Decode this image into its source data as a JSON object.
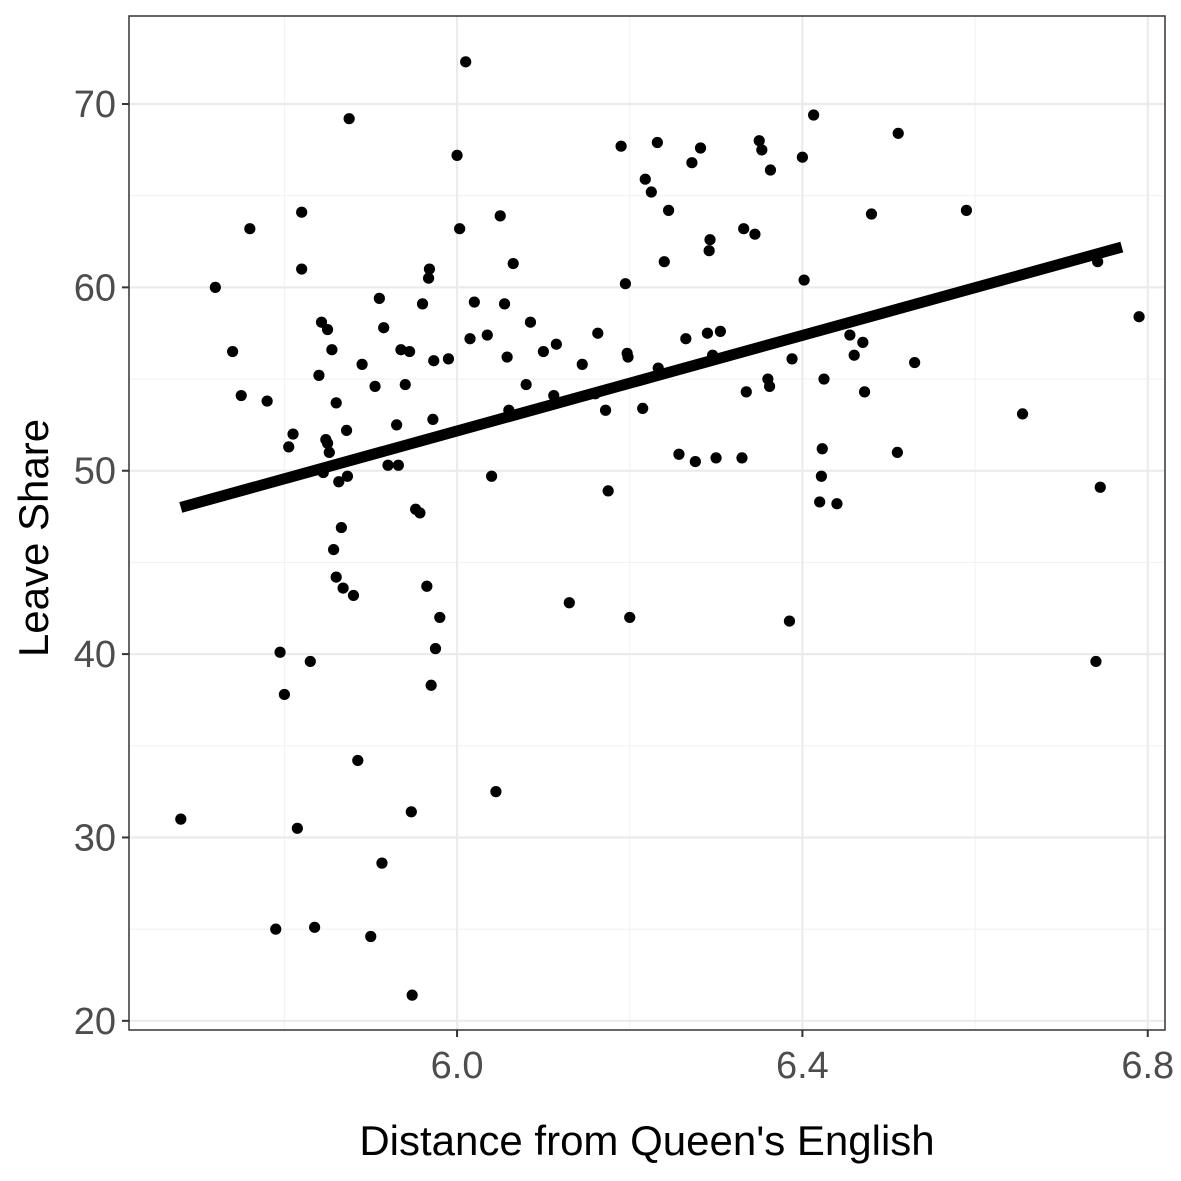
{
  "chart_data": {
    "type": "scatter",
    "title": "",
    "xlabel": "Distance from Queen's English",
    "ylabel": "Leave Share",
    "xlim": [
      5.62,
      6.82
    ],
    "ylim": [
      19.5,
      74.8
    ],
    "x_ticks": [
      6.0,
      6.4,
      6.8
    ],
    "x_tick_labels": [
      "6.0",
      "6.4",
      "6.8"
    ],
    "y_ticks": [
      20,
      30,
      40,
      50,
      60,
      70
    ],
    "y_tick_labels": [
      "20",
      "30",
      "40",
      "50",
      "60",
      "70"
    ],
    "grid": true,
    "legend": "none",
    "point_color": "#000000",
    "fit_line": {
      "type": "linear",
      "x": [
        5.68,
        6.77
      ],
      "y": [
        48.0,
        62.2
      ],
      "color": "#000000"
    },
    "points": [
      [
        5.68,
        31.0
      ],
      [
        5.72,
        60.0
      ],
      [
        5.74,
        56.5
      ],
      [
        5.75,
        54.1
      ],
      [
        5.76,
        63.2
      ],
      [
        5.78,
        53.8
      ],
      [
        5.79,
        25.0
      ],
      [
        5.795,
        40.1
      ],
      [
        5.8,
        37.8
      ],
      [
        5.805,
        51.3
      ],
      [
        5.81,
        52.0
      ],
      [
        5.815,
        30.5
      ],
      [
        5.82,
        61.0
      ],
      [
        5.82,
        64.1
      ],
      [
        5.83,
        39.6
      ],
      [
        5.835,
        25.1
      ],
      [
        5.84,
        55.2
      ],
      [
        5.843,
        58.1
      ],
      [
        5.845,
        49.9
      ],
      [
        5.848,
        51.7
      ],
      [
        5.85,
        57.7
      ],
      [
        5.85,
        51.5
      ],
      [
        5.852,
        51.0
      ],
      [
        5.855,
        56.6
      ],
      [
        5.857,
        45.7
      ],
      [
        5.86,
        53.7
      ],
      [
        5.86,
        44.2
      ],
      [
        5.863,
        49.4
      ],
      [
        5.866,
        46.9
      ],
      [
        5.868,
        43.6
      ],
      [
        5.872,
        52.2
      ],
      [
        5.873,
        49.7
      ],
      [
        5.875,
        69.2
      ],
      [
        5.88,
        43.2
      ],
      [
        5.885,
        34.2
      ],
      [
        5.89,
        55.8
      ],
      [
        5.9,
        24.6
      ],
      [
        5.905,
        54.6
      ],
      [
        5.91,
        59.4
      ],
      [
        5.913,
        28.6
      ],
      [
        5.915,
        57.8
      ],
      [
        5.92,
        50.3
      ],
      [
        5.93,
        52.5
      ],
      [
        5.932,
        50.3
      ],
      [
        5.935,
        56.6
      ],
      [
        5.94,
        54.7
      ],
      [
        5.945,
        56.5
      ],
      [
        5.947,
        31.4
      ],
      [
        5.948,
        21.4
      ],
      [
        5.952,
        47.9
      ],
      [
        5.957,
        47.7
      ],
      [
        5.96,
        59.1
      ],
      [
        5.965,
        43.7
      ],
      [
        5.967,
        60.5
      ],
      [
        5.968,
        61.0
      ],
      [
        5.97,
        38.3
      ],
      [
        5.972,
        52.8
      ],
      [
        5.973,
        56.0
      ],
      [
        5.975,
        40.3
      ],
      [
        5.98,
        42.0
      ],
      [
        5.99,
        56.1
      ],
      [
        6.0,
        67.2
      ],
      [
        6.003,
        63.2
      ],
      [
        6.01,
        72.3
      ],
      [
        6.015,
        57.2
      ],
      [
        6.02,
        59.2
      ],
      [
        6.035,
        57.4
      ],
      [
        6.04,
        49.7
      ],
      [
        6.045,
        32.5
      ],
      [
        6.05,
        63.9
      ],
      [
        6.055,
        59.1
      ],
      [
        6.058,
        56.2
      ],
      [
        6.06,
        53.3
      ],
      [
        6.065,
        61.3
      ],
      [
        6.08,
        54.7
      ],
      [
        6.085,
        58.1
      ],
      [
        6.1,
        56.5
      ],
      [
        6.112,
        54.1
      ],
      [
        6.115,
        56.9
      ],
      [
        6.13,
        42.8
      ],
      [
        6.145,
        55.8
      ],
      [
        6.16,
        54.2
      ],
      [
        6.163,
        57.5
      ],
      [
        6.172,
        53.3
      ],
      [
        6.175,
        48.9
      ],
      [
        6.19,
        67.7
      ],
      [
        6.195,
        60.2
      ],
      [
        6.197,
        56.4
      ],
      [
        6.198,
        56.2
      ],
      [
        6.2,
        42.0
      ],
      [
        6.215,
        53.4
      ],
      [
        6.218,
        65.9
      ],
      [
        6.225,
        65.2
      ],
      [
        6.232,
        67.9
      ],
      [
        6.233,
        55.6
      ],
      [
        6.24,
        61.4
      ],
      [
        6.245,
        64.2
      ],
      [
        6.257,
        50.9
      ],
      [
        6.265,
        57.2
      ],
      [
        6.272,
        66.8
      ],
      [
        6.276,
        50.5
      ],
      [
        6.282,
        67.6
      ],
      [
        6.29,
        57.5
      ],
      [
        6.292,
        62.0
      ],
      [
        6.293,
        62.6
      ],
      [
        6.296,
        56.3
      ],
      [
        6.3,
        50.7
      ],
      [
        6.305,
        57.6
      ],
      [
        6.33,
        50.7
      ],
      [
        6.332,
        63.2
      ],
      [
        6.335,
        54.3
      ],
      [
        6.345,
        62.9
      ],
      [
        6.35,
        68.0
      ],
      [
        6.353,
        67.5
      ],
      [
        6.36,
        55.0
      ],
      [
        6.362,
        54.6
      ],
      [
        6.363,
        66.4
      ],
      [
        6.385,
        41.8
      ],
      [
        6.388,
        56.1
      ],
      [
        6.4,
        67.1
      ],
      [
        6.402,
        60.4
      ],
      [
        6.413,
        69.4
      ],
      [
        6.42,
        48.3
      ],
      [
        6.422,
        49.7
      ],
      [
        6.423,
        51.2
      ],
      [
        6.425,
        55.0
      ],
      [
        6.44,
        48.2
      ],
      [
        6.455,
        57.4
      ],
      [
        6.46,
        56.3
      ],
      [
        6.47,
        57.0
      ],
      [
        6.472,
        54.3
      ],
      [
        6.48,
        64.0
      ],
      [
        6.51,
        51.0
      ],
      [
        6.511,
        68.4
      ],
      [
        6.53,
        55.9
      ],
      [
        6.59,
        64.2
      ],
      [
        6.655,
        53.1
      ],
      [
        6.74,
        39.6
      ],
      [
        6.742,
        61.4
      ],
      [
        6.745,
        49.1
      ],
      [
        6.79,
        58.4
      ]
    ]
  }
}
